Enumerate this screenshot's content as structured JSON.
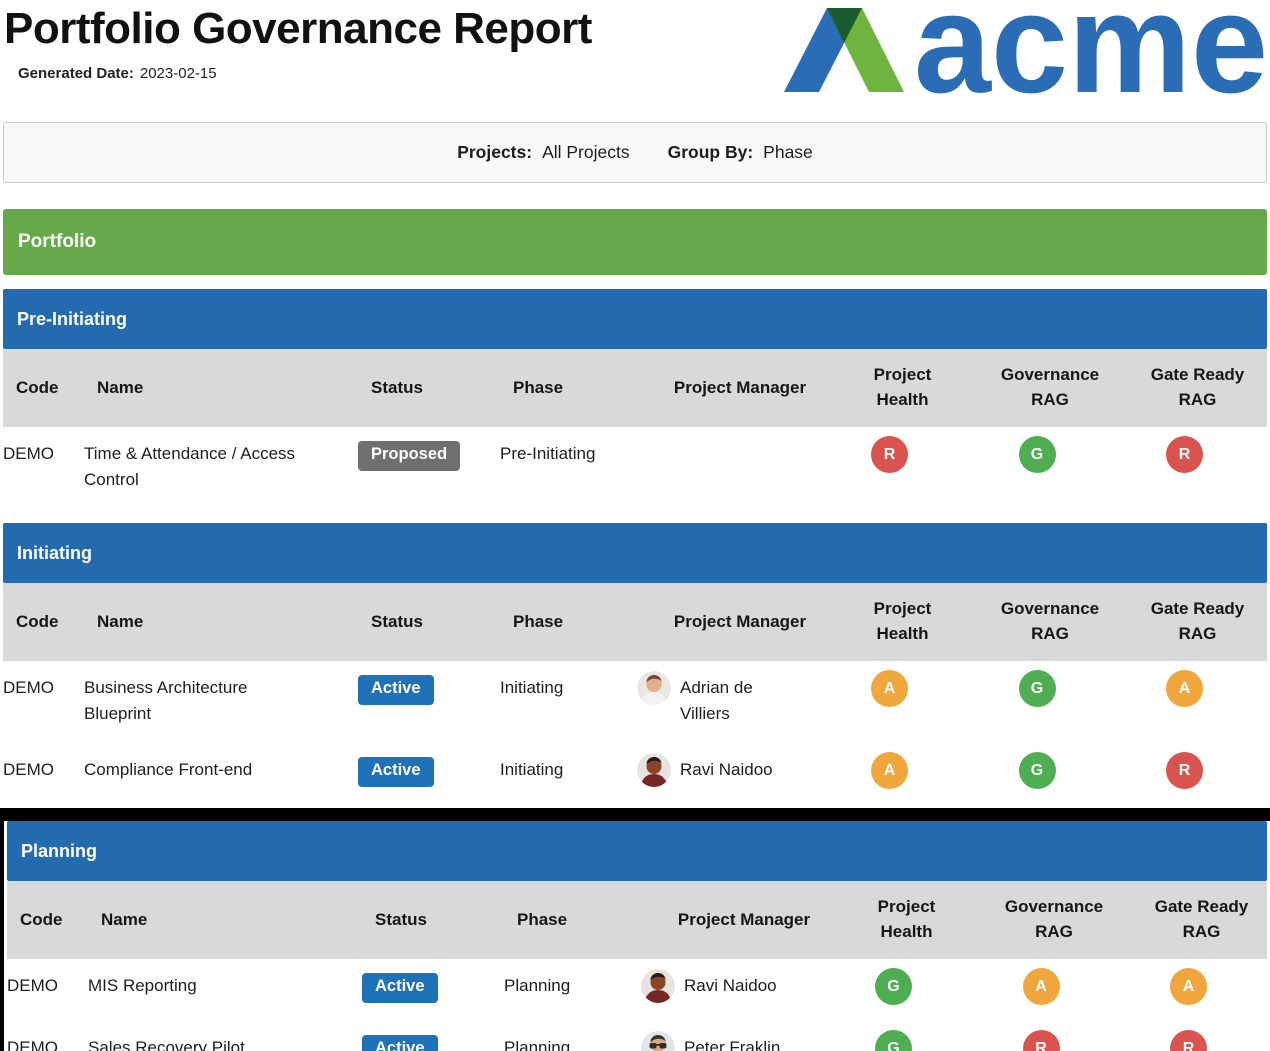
{
  "header": {
    "title": "Portfolio Governance Report",
    "generated_label": "Generated Date:",
    "generated_date": "2023-02-15",
    "logo_text": "acme"
  },
  "filters": {
    "projects_label": "Projects:",
    "projects_value": "All Projects",
    "group_by_label": "Group By:",
    "group_by_value": "Phase"
  },
  "portfolio_header": "Portfolio",
  "columns": [
    "Code",
    "Name",
    "Status",
    "Phase",
    "Project Manager",
    "Project Health",
    "Governance RAG",
    "Gate Ready RAG"
  ],
  "sections": [
    {
      "phase": "Pre-Initiating",
      "rows": [
        {
          "code": "DEMO",
          "name": "Time & Attendance / Access Control",
          "status": "Proposed",
          "status_type": "proposed",
          "phase": "Pre-Initiating",
          "manager": null,
          "avatar": null,
          "health": "R",
          "governance": "G",
          "gate_ready": "R"
        }
      ]
    },
    {
      "phase": "Initiating",
      "rows": [
        {
          "code": "DEMO",
          "name": "Business Architecture Blueprint",
          "status": "Active",
          "status_type": "active",
          "phase": "Initiating",
          "manager": "Adrian de Villiers",
          "avatar": {
            "bg": "#eae6e2",
            "skin": "#e3b08a",
            "hair": "#6a4a33",
            "shirt": "#f3f3f3",
            "glasses": false
          },
          "health": "A",
          "governance": "G",
          "gate_ready": "A"
        },
        {
          "code": "DEMO",
          "name": "Compliance Front-end",
          "status": "Active",
          "status_type": "active",
          "phase": "Initiating",
          "manager": "Ravi Naidoo",
          "avatar": {
            "bg": "#e7e3df",
            "skin": "#8a4526",
            "hair": "#241813",
            "shirt": "#772723",
            "glasses": false
          },
          "health": "A",
          "governance": "G",
          "gate_ready": "R"
        }
      ]
    },
    {
      "phase": "Planning",
      "rows": [
        {
          "code": "DEMO",
          "name": "MIS Reporting",
          "status": "Active",
          "status_type": "active",
          "phase": "Planning",
          "manager": "Ravi Naidoo",
          "avatar": {
            "bg": "#e7e3df",
            "skin": "#8a4526",
            "hair": "#241813",
            "shirt": "#772723",
            "glasses": false
          },
          "health": "G",
          "governance": "A",
          "gate_ready": "A"
        },
        {
          "code": "DEMO",
          "name": "Sales Recovery Pilot",
          "status": "Active",
          "status_type": "active",
          "phase": "Planning",
          "manager": "Peter Fraklin",
          "avatar": {
            "bg": "#e2e5e6",
            "skin": "#d8a87e",
            "hair": "#33302c",
            "shirt": "#46616c",
            "glasses": true
          },
          "health": "G",
          "governance": "R",
          "gate_ready": "R"
        }
      ]
    }
  ],
  "colors": {
    "bar_green": "#66a94a",
    "bar_blue": "#236aae",
    "table_header_bg": "#d9d9d9",
    "status_active_bg": "#1f71b8",
    "status_proposed_bg": "#6f6f6f",
    "rag_red": "#d9534f",
    "rag_amber": "#efa63c",
    "rag_green": "#4fae52",
    "logo_blue": "#2b6db5",
    "logo_green": "#6fb43e",
    "logo_dark_green": "#1c5b2d"
  }
}
